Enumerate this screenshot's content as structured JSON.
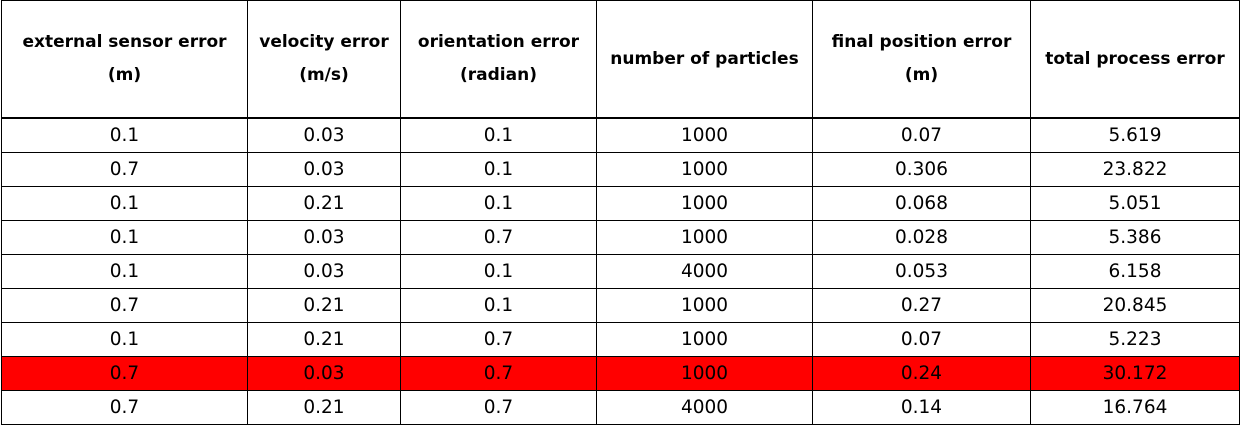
{
  "table": {
    "headers": [
      {
        "line1": "external  sensor error",
        "line2": "(m)"
      },
      {
        "line1": "velocity error",
        "line2": "(m/s)"
      },
      {
        "line1": "orientation  error",
        "line2": "(radian)"
      },
      {
        "line1": "number of particles",
        "line2": ""
      },
      {
        "line1": "final position error",
        "line2": "(m)"
      },
      {
        "line1": "total process error",
        "line2": ""
      }
    ],
    "rows": [
      [
        "0.1",
        "0.03",
        "0.1",
        "1000",
        "0.07",
        "5.619"
      ],
      [
        "0.7",
        "0.03",
        "0.1",
        "1000",
        "0.306",
        "23.822"
      ],
      [
        "0.1",
        "0.21",
        "0.1",
        "1000",
        "0.068",
        "5.051"
      ],
      [
        "0.1",
        "0.03",
        "0.7",
        "1000",
        "0.028",
        "5.386"
      ],
      [
        "0.1",
        "0.03",
        "0.1",
        "4000",
        "0.053",
        "6.158"
      ],
      [
        "0.7",
        "0.21",
        "0.1",
        "1000",
        "0.27",
        "20.845"
      ],
      [
        "0.1",
        "0.21",
        "0.7",
        "1000",
        "0.07",
        "5.223"
      ],
      [
        "0.7",
        "0.03",
        "0.7",
        "1000",
        "0.24",
        "30.172"
      ],
      [
        "0.7",
        "0.21",
        "0.7",
        "4000",
        "0.14",
        "16.764"
      ]
    ],
    "highlight_row_index": 7,
    "highlight_color": "#ff0000",
    "border_color": "#000000"
  }
}
